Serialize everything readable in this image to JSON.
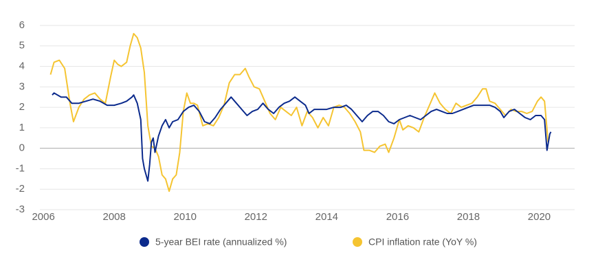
{
  "chart_data": {
    "type": "line",
    "xlim": [
      2005.9,
      2021
    ],
    "xticks": [
      2006,
      2008,
      2010,
      2012,
      2014,
      2016,
      2018,
      2020
    ],
    "ylim": [
      -3,
      6
    ],
    "yticks": [
      -3,
      -2,
      -1,
      0,
      1,
      2,
      3,
      4,
      5,
      6
    ],
    "grid": true,
    "legend": "bottom",
    "series": [
      {
        "name": "5-year BEI rate (annualized %)",
        "color": "#0b2a8c",
        "x": [
          2006.25,
          2006.3,
          2006.5,
          2006.65,
          2006.8,
          2007.0,
          2007.2,
          2007.4,
          2007.6,
          2007.8,
          2008.0,
          2008.2,
          2008.35,
          2008.5,
          2008.55,
          2008.65,
          2008.75,
          2008.8,
          2008.85,
          2008.95,
          2009.0,
          2009.05,
          2009.1,
          2009.15,
          2009.25,
          2009.35,
          2009.45,
          2009.55,
          2009.65,
          2009.8,
          2009.95,
          2010.1,
          2010.25,
          2010.4,
          2010.55,
          2010.7,
          2010.85,
          2011.0,
          2011.15,
          2011.3,
          2011.45,
          2011.6,
          2011.75,
          2011.9,
          2012.05,
          2012.2,
          2012.35,
          2012.5,
          2012.65,
          2012.8,
          2012.95,
          2013.1,
          2013.25,
          2013.4,
          2013.5,
          2013.65,
          2013.8,
          2014.0,
          2014.2,
          2014.4,
          2014.55,
          2014.7,
          2014.85,
          2015.0,
          2015.15,
          2015.3,
          2015.45,
          2015.6,
          2015.75,
          2015.9,
          2016.05,
          2016.2,
          2016.35,
          2016.5,
          2016.65,
          2016.8,
          2016.95,
          2017.1,
          2017.25,
          2017.4,
          2017.55,
          2017.7,
          2017.85,
          2018.0,
          2018.15,
          2018.3,
          2018.45,
          2018.6,
          2018.75,
          2018.9,
          2019.0,
          2019.15,
          2019.3,
          2019.45,
          2019.6,
          2019.75,
          2019.9,
          2020.05,
          2020.15,
          2020.22,
          2020.3,
          2020.33
        ],
        "values": [
          2.6,
          2.7,
          2.5,
          2.5,
          2.2,
          2.2,
          2.3,
          2.4,
          2.3,
          2.1,
          2.1,
          2.2,
          2.3,
          2.5,
          2.6,
          2.2,
          1.4,
          -0.5,
          -1.0,
          -1.6,
          -0.8,
          0.3,
          0.5,
          -0.2,
          0.6,
          1.1,
          1.4,
          1.0,
          1.3,
          1.4,
          1.8,
          2.0,
          2.1,
          1.8,
          1.3,
          1.2,
          1.5,
          1.9,
          2.2,
          2.5,
          2.2,
          1.9,
          1.6,
          1.8,
          1.9,
          2.2,
          1.9,
          1.7,
          2.0,
          2.2,
          2.3,
          2.5,
          2.3,
          2.1,
          1.7,
          1.9,
          1.9,
          1.9,
          2.0,
          2.0,
          2.1,
          1.9,
          1.6,
          1.3,
          1.6,
          1.8,
          1.8,
          1.6,
          1.3,
          1.2,
          1.4,
          1.5,
          1.6,
          1.5,
          1.4,
          1.6,
          1.8,
          1.9,
          1.8,
          1.7,
          1.7,
          1.8,
          1.9,
          2.0,
          2.1,
          2.1,
          2.1,
          2.1,
          2.0,
          1.8,
          1.5,
          1.8,
          1.9,
          1.7,
          1.5,
          1.4,
          1.6,
          1.6,
          1.4,
          -0.1,
          0.7,
          0.8
        ]
      },
      {
        "name": "CPI inflation rate (YoY %)",
        "color": "#f5c431",
        "x": [
          2006.2,
          2006.3,
          2006.45,
          2006.6,
          2006.75,
          2006.85,
          2007.0,
          2007.15,
          2007.3,
          2007.45,
          2007.6,
          2007.75,
          2007.9,
          2008.0,
          2008.1,
          2008.2,
          2008.35,
          2008.45,
          2008.55,
          2008.65,
          2008.75,
          2008.85,
          2008.95,
          2009.05,
          2009.15,
          2009.25,
          2009.35,
          2009.45,
          2009.55,
          2009.65,
          2009.75,
          2009.85,
          2009.95,
          2010.05,
          2010.15,
          2010.25,
          2010.35,
          2010.5,
          2010.65,
          2010.8,
          2010.95,
          2011.1,
          2011.25,
          2011.4,
          2011.55,
          2011.7,
          2011.8,
          2011.95,
          2012.1,
          2012.25,
          2012.4,
          2012.55,
          2012.7,
          2012.85,
          2013.0,
          2013.15,
          2013.3,
          2013.45,
          2013.6,
          2013.75,
          2013.9,
          2014.05,
          2014.2,
          2014.35,
          2014.5,
          2014.65,
          2014.8,
          2014.95,
          2015.05,
          2015.2,
          2015.35,
          2015.5,
          2015.65,
          2015.75,
          2015.9,
          2016.05,
          2016.15,
          2016.3,
          2016.45,
          2016.6,
          2016.75,
          2016.9,
          2017.05,
          2017.2,
          2017.35,
          2017.5,
          2017.65,
          2017.8,
          2017.95,
          2018.1,
          2018.25,
          2018.4,
          2018.5,
          2018.6,
          2018.75,
          2018.9,
          2019.05,
          2019.2,
          2019.35,
          2019.5,
          2019.65,
          2019.8,
          2019.95,
          2020.05,
          2020.15,
          2020.25
        ],
        "values": [
          3.6,
          4.2,
          4.3,
          3.9,
          2.2,
          1.3,
          2.0,
          2.4,
          2.6,
          2.7,
          2.4,
          2.2,
          3.5,
          4.3,
          4.1,
          4.0,
          4.2,
          5.0,
          5.6,
          5.4,
          4.9,
          3.7,
          1.1,
          0.1,
          0.0,
          -0.4,
          -1.3,
          -1.5,
          -2.1,
          -1.5,
          -1.3,
          -0.2,
          1.8,
          2.7,
          2.2,
          2.2,
          2.1,
          1.1,
          1.2,
          1.1,
          1.5,
          2.1,
          3.2,
          3.6,
          3.6,
          3.9,
          3.5,
          3.0,
          2.9,
          2.3,
          1.7,
          1.4,
          2.0,
          1.8,
          1.6,
          2.0,
          1.1,
          1.8,
          1.5,
          1.0,
          1.5,
          1.1,
          2.0,
          2.1,
          2.0,
          1.7,
          1.3,
          0.8,
          -0.1,
          -0.1,
          -0.2,
          0.1,
          0.2,
          -0.2,
          0.5,
          1.4,
          0.9,
          1.1,
          1.0,
          0.8,
          1.5,
          2.1,
          2.7,
          2.2,
          1.9,
          1.7,
          2.2,
          2.0,
          2.1,
          2.2,
          2.5,
          2.9,
          2.9,
          2.3,
          2.2,
          1.9,
          1.6,
          1.9,
          1.8,
          1.8,
          1.7,
          1.8,
          2.3,
          2.5,
          2.3,
          0.3
        ]
      }
    ]
  }
}
